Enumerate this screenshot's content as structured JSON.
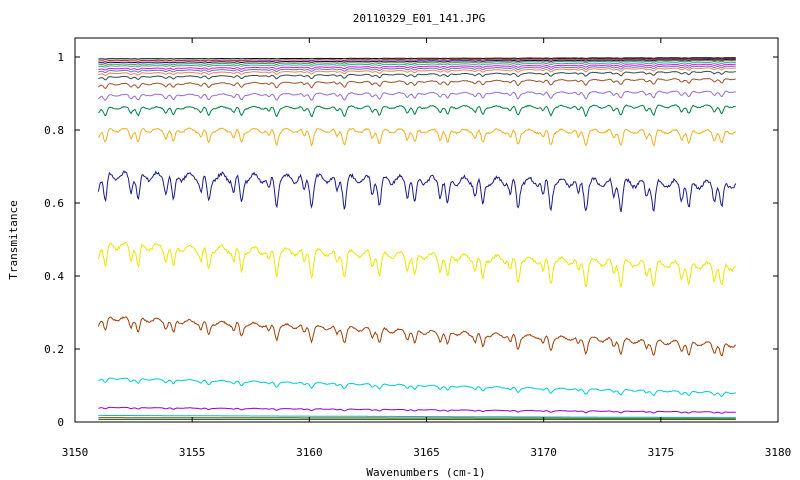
{
  "chart_data": {
    "type": "line",
    "title": "20110329_E01_141.JPG",
    "xlabel": "Wavenumbers (cm-1)",
    "ylabel": "Transmitance",
    "xlim": [
      3150,
      3180
    ],
    "ylim": [
      0,
      1
    ],
    "x_range_data": [
      3151.0,
      3178.2
    ],
    "x_ticks": [
      "3150",
      "3155",
      "3160",
      "3165",
      "3170",
      "3175",
      "3180"
    ],
    "y_ticks": [
      "0",
      "0.2",
      "0.4",
      "0.6",
      "0.8",
      "1"
    ],
    "grid": false,
    "legend": "none",
    "absorption_line_positions": [
      3151.3,
      3152.7,
      3154.2,
      3155.7,
      3157.1,
      3158.6,
      3160.1,
      3161.5,
      3163.0,
      3164.5,
      3165.9,
      3167.4,
      3168.9,
      3170.3,
      3171.8,
      3173.3,
      3174.7,
      3176.2,
      3177.6
    ],
    "series": [
      {
        "color": "#006400",
        "start": 0.007,
        "end": 0.007,
        "depth": 0.0
      },
      {
        "color": "#8b4513",
        "start": 0.012,
        "end": 0.01,
        "depth": 0.0
      },
      {
        "color": "#00bfbf",
        "start": 0.018,
        "end": 0.012,
        "depth": 0.0
      },
      {
        "color": "#9400d3",
        "start": 0.04,
        "end": 0.027,
        "depth": 0.004
      },
      {
        "color": "#00d0d0",
        "start": 0.12,
        "end": 0.08,
        "depth": 0.012
      },
      {
        "color": "#a0400a",
        "start": 0.285,
        "end": 0.21,
        "depth": 0.035
      },
      {
        "color": "#e8e800",
        "start": 0.485,
        "end": 0.425,
        "depth": 0.06
      },
      {
        "color": "#1a1a8c",
        "start": 0.675,
        "end": 0.65,
        "depth": 0.07
      },
      {
        "color": "#f0b020",
        "start": 0.8,
        "end": 0.795,
        "depth": 0.035
      },
      {
        "color": "#008040",
        "start": 0.86,
        "end": 0.865,
        "depth": 0.022
      },
      {
        "color": "#9370db",
        "start": 0.895,
        "end": 0.905,
        "depth": 0.015
      },
      {
        "color": "#a0522d",
        "start": 0.925,
        "end": 0.94,
        "depth": 0.012
      },
      {
        "color": "#2f4f4f",
        "start": 0.945,
        "end": 0.96,
        "depth": 0.008
      },
      {
        "color": "#ff7f50",
        "start": 0.955,
        "end": 0.97,
        "depth": 0.006
      },
      {
        "color": "#4682b4",
        "start": 0.962,
        "end": 0.975,
        "depth": 0.005
      },
      {
        "color": "#ff00ff",
        "start": 0.968,
        "end": 0.98,
        "depth": 0.004
      },
      {
        "color": "#20b2aa",
        "start": 0.975,
        "end": 0.985,
        "depth": 0.003
      },
      {
        "color": "#6b8e23",
        "start": 0.98,
        "end": 0.99,
        "depth": 0.003
      },
      {
        "color": "#000080",
        "start": 0.985,
        "end": 0.993,
        "depth": 0.002
      },
      {
        "color": "#b22222",
        "start": 0.99,
        "end": 0.996,
        "depth": 0.002
      },
      {
        "color": "#000000",
        "start": 0.995,
        "end": 0.998,
        "depth": 0.001
      }
    ]
  }
}
